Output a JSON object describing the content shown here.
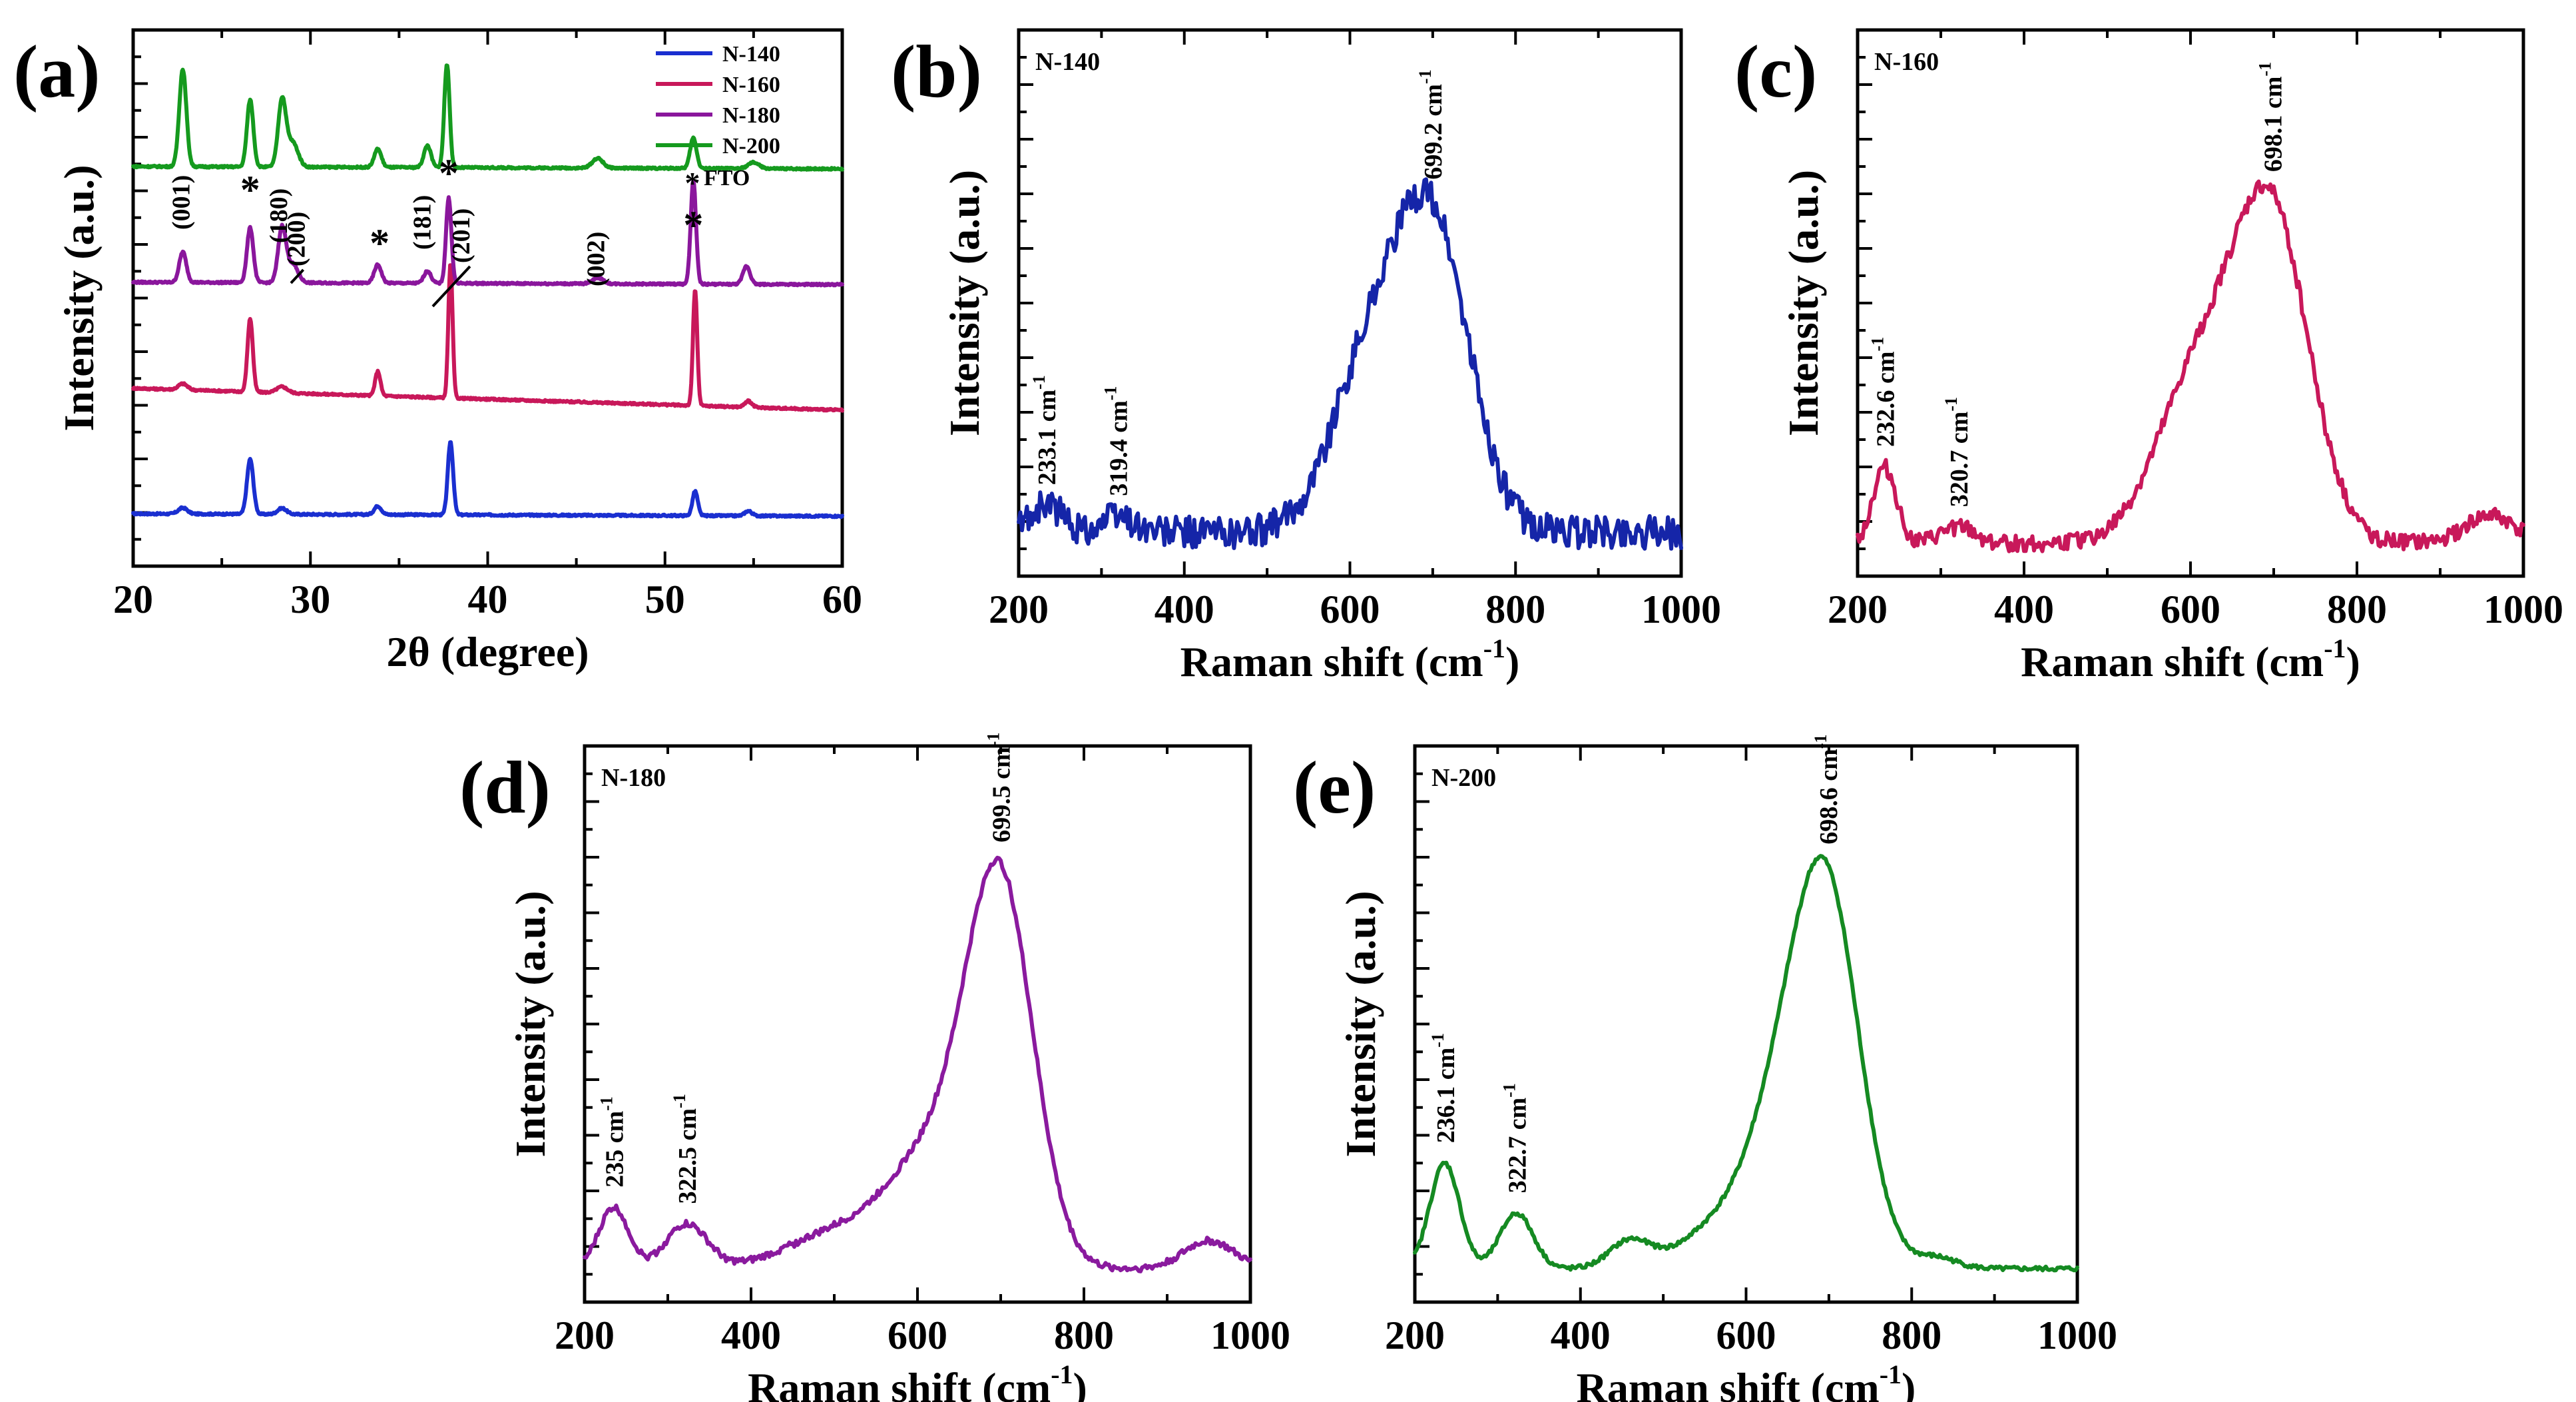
{
  "chart_data": [
    {
      "id": "a",
      "type": "line",
      "panel_label": "(a)",
      "xlabel": "2θ (degree)",
      "ylabel": "Intensity (a.u.)",
      "xlim": [
        20,
        60
      ],
      "xticks": [
        20,
        30,
        40,
        50,
        60
      ],
      "xtick_labels": [
        "20",
        "30",
        "40",
        "50",
        "60"
      ],
      "legend": {
        "position": "top-right",
        "entries": [
          "N-140",
          "N-160",
          "N-180",
          "N-200"
        ],
        "marker_note": "FTO"
      },
      "series": [
        {
          "name": "N-140",
          "color": "#1a2fd0",
          "offset": 0.0,
          "baseline": 0.08,
          "slope": -0.0005,
          "peaks": [
            [
              22.8,
              0.05,
              0.25
            ],
            [
              26.6,
              0.45,
              0.18
            ],
            [
              28.4,
              0.05,
              0.25
            ],
            [
              33.8,
              0.07,
              0.2
            ],
            [
              37.9,
              0.6,
              0.15
            ],
            [
              51.7,
              0.2,
              0.15
            ],
            [
              54.7,
              0.04,
              0.2
            ]
          ]
        },
        {
          "name": "N-160",
          "color": "#c8185a",
          "offset": 1.0,
          "baseline": 0.16,
          "slope": -0.0045,
          "peaks": [
            [
              22.8,
              0.05,
              0.25
            ],
            [
              26.6,
              0.6,
              0.15
            ],
            [
              28.4,
              0.05,
              0.3
            ],
            [
              33.8,
              0.2,
              0.15
            ],
            [
              37.9,
              1.1,
              0.12
            ],
            [
              51.7,
              0.95,
              0.12
            ],
            [
              54.7,
              0.05,
              0.2
            ]
          ]
        },
        {
          "name": "N-180",
          "color": "#8a169c",
          "offset": 2.0,
          "baseline": 0.08,
          "slope": -0.0005,
          "peaks": [
            [
              22.8,
              0.25,
              0.2
            ],
            [
              26.6,
              0.45,
              0.18
            ],
            [
              28.4,
              0.45,
              0.22
            ],
            [
              29.0,
              0.15,
              0.3
            ],
            [
              33.8,
              0.15,
              0.2
            ],
            [
              36.6,
              0.1,
              0.2
            ],
            [
              37.8,
              0.7,
              0.15
            ],
            [
              46.2,
              0.05,
              0.3
            ],
            [
              51.6,
              0.85,
              0.15
            ],
            [
              54.6,
              0.15,
              0.2
            ]
          ]
        },
        {
          "name": "N-200",
          "color": "#159a1e",
          "offset": 3.0,
          "baseline": 0.08,
          "slope": -0.0005,
          "peaks": [
            [
              22.8,
              0.8,
              0.2
            ],
            [
              26.6,
              0.55,
              0.18
            ],
            [
              28.4,
              0.55,
              0.22
            ],
            [
              29.0,
              0.2,
              0.3
            ],
            [
              33.8,
              0.15,
              0.2
            ],
            [
              36.6,
              0.18,
              0.2
            ],
            [
              37.7,
              0.85,
              0.15
            ],
            [
              46.2,
              0.08,
              0.3
            ],
            [
              51.6,
              0.25,
              0.18
            ],
            [
              55.0,
              0.05,
              0.3
            ]
          ]
        }
      ],
      "annotations": [
        {
          "text": "(001)",
          "x": 22.8
        },
        {
          "text": "(180)",
          "x": 28.3
        },
        {
          "text": "(200)",
          "x": 29.3
        },
        {
          "text": "(181)",
          "x": 36.4
        },
        {
          "text": "(201)",
          "x": 38.6
        },
        {
          "text": "(002)",
          "x": 46.2
        }
      ],
      "fto_markers": [
        26.6,
        33.9,
        37.8,
        51.6
      ]
    },
    {
      "id": "b",
      "type": "line",
      "panel_label": "(b)",
      "sample": "N-140",
      "color": "#1525a8",
      "xlabel": "Raman shift (cm",
      "ylabel": "Intensity (a.u.)",
      "xlim": [
        200,
        1000
      ],
      "xticks": [
        200,
        400,
        600,
        800,
        1000
      ],
      "xtick_labels": [
        "200",
        "400",
        "600",
        "800",
        "1000"
      ],
      "noise": 0.06,
      "baseline": 0.08,
      "peaks": [
        [
          233.1,
          0.05,
          20
        ],
        [
          319.4,
          0.03,
          20
        ],
        [
          620,
          0.28,
          45
        ],
        [
          699.2,
          0.55,
          45
        ]
      ],
      "annotations": [
        {
          "text": "233.1 cm",
          "x": 233.1
        },
        {
          "text": "319.4 cm",
          "x": 319.4
        },
        {
          "text": "699.2 cm",
          "x": 699.2
        }
      ]
    },
    {
      "id": "c",
      "type": "line",
      "panel_label": "(c)",
      "sample": "N-160",
      "color": "#c8185a",
      "xlabel": "Raman shift (cm",
      "ylabel": "Intensity (a.u.)",
      "xlim": [
        200,
        1000
      ],
      "xticks": [
        200,
        400,
        600,
        800,
        1000
      ],
      "xtick_labels": [
        "200",
        "400",
        "600",
        "800",
        "1000"
      ],
      "noise": 0.03,
      "baseline": 0.06,
      "peaks": [
        [
          232.6,
          0.14,
          14
        ],
        [
          320.7,
          0.03,
          20
        ],
        [
          610,
          0.3,
          50
        ],
        [
          698.1,
          0.58,
          45
        ],
        [
          960,
          0.05,
          30
        ]
      ],
      "annotations": [
        {
          "text": "232.6 cm",
          "x": 232.6
        },
        {
          "text": "320.7 cm",
          "x": 320.7
        },
        {
          "text": "698.1 cm",
          "x": 698.1
        }
      ]
    },
    {
      "id": "d",
      "type": "line",
      "panel_label": "(d)",
      "sample": "N-180",
      "color": "#8a1a9e",
      "xlabel": "Raman shift (cm",
      "ylabel": "Intensity (a.u.)",
      "xlim": [
        200,
        1000
      ],
      "xticks": [
        200,
        400,
        600,
        800,
        1000
      ],
      "xtick_labels": [
        "200",
        "400",
        "600",
        "800",
        "1000"
      ],
      "noise": 0.012,
      "baseline": 0.06,
      "peaks": [
        [
          235,
          0.11,
          18
        ],
        [
          322.5,
          0.08,
          25
        ],
        [
          500,
          0.06,
          60
        ],
        [
          620,
          0.2,
          55
        ],
        [
          699.5,
          0.66,
          40
        ],
        [
          950,
          0.05,
          30
        ]
      ],
      "annotations": [
        {
          "text": "235 cm",
          "x": 235
        },
        {
          "text": "322.5 cm",
          "x": 322.5
        },
        {
          "text": "699.5 cm",
          "x": 699.5
        }
      ]
    },
    {
      "id": "e",
      "type": "line",
      "panel_label": "(e)",
      "sample": "N-200",
      "color": "#158a22",
      "xlabel": "Raman shift (cm",
      "ylabel": "Intensity (a.u.)",
      "xlim": [
        200,
        1000
      ],
      "xticks": [
        200,
        400,
        600,
        800,
        1000
      ],
      "xtick_labels": [
        "200",
        "400",
        "600",
        "800",
        "1000"
      ],
      "noise": 0.008,
      "baseline": 0.06,
      "peaks": [
        [
          236.1,
          0.19,
          18
        ],
        [
          322.7,
          0.1,
          20
        ],
        [
          460,
          0.05,
          25
        ],
        [
          550,
          0.05,
          40
        ],
        [
          640,
          0.25,
          45
        ],
        [
          698.6,
          0.62,
          40
        ],
        [
          830,
          0.02,
          25
        ]
      ],
      "annotations": [
        {
          "text": "236.1 cm",
          "x": 236.1
        },
        {
          "text": "322.7 cm",
          "x": 322.7
        },
        {
          "text": "698.6 cm",
          "x": 698.6
        }
      ]
    }
  ]
}
